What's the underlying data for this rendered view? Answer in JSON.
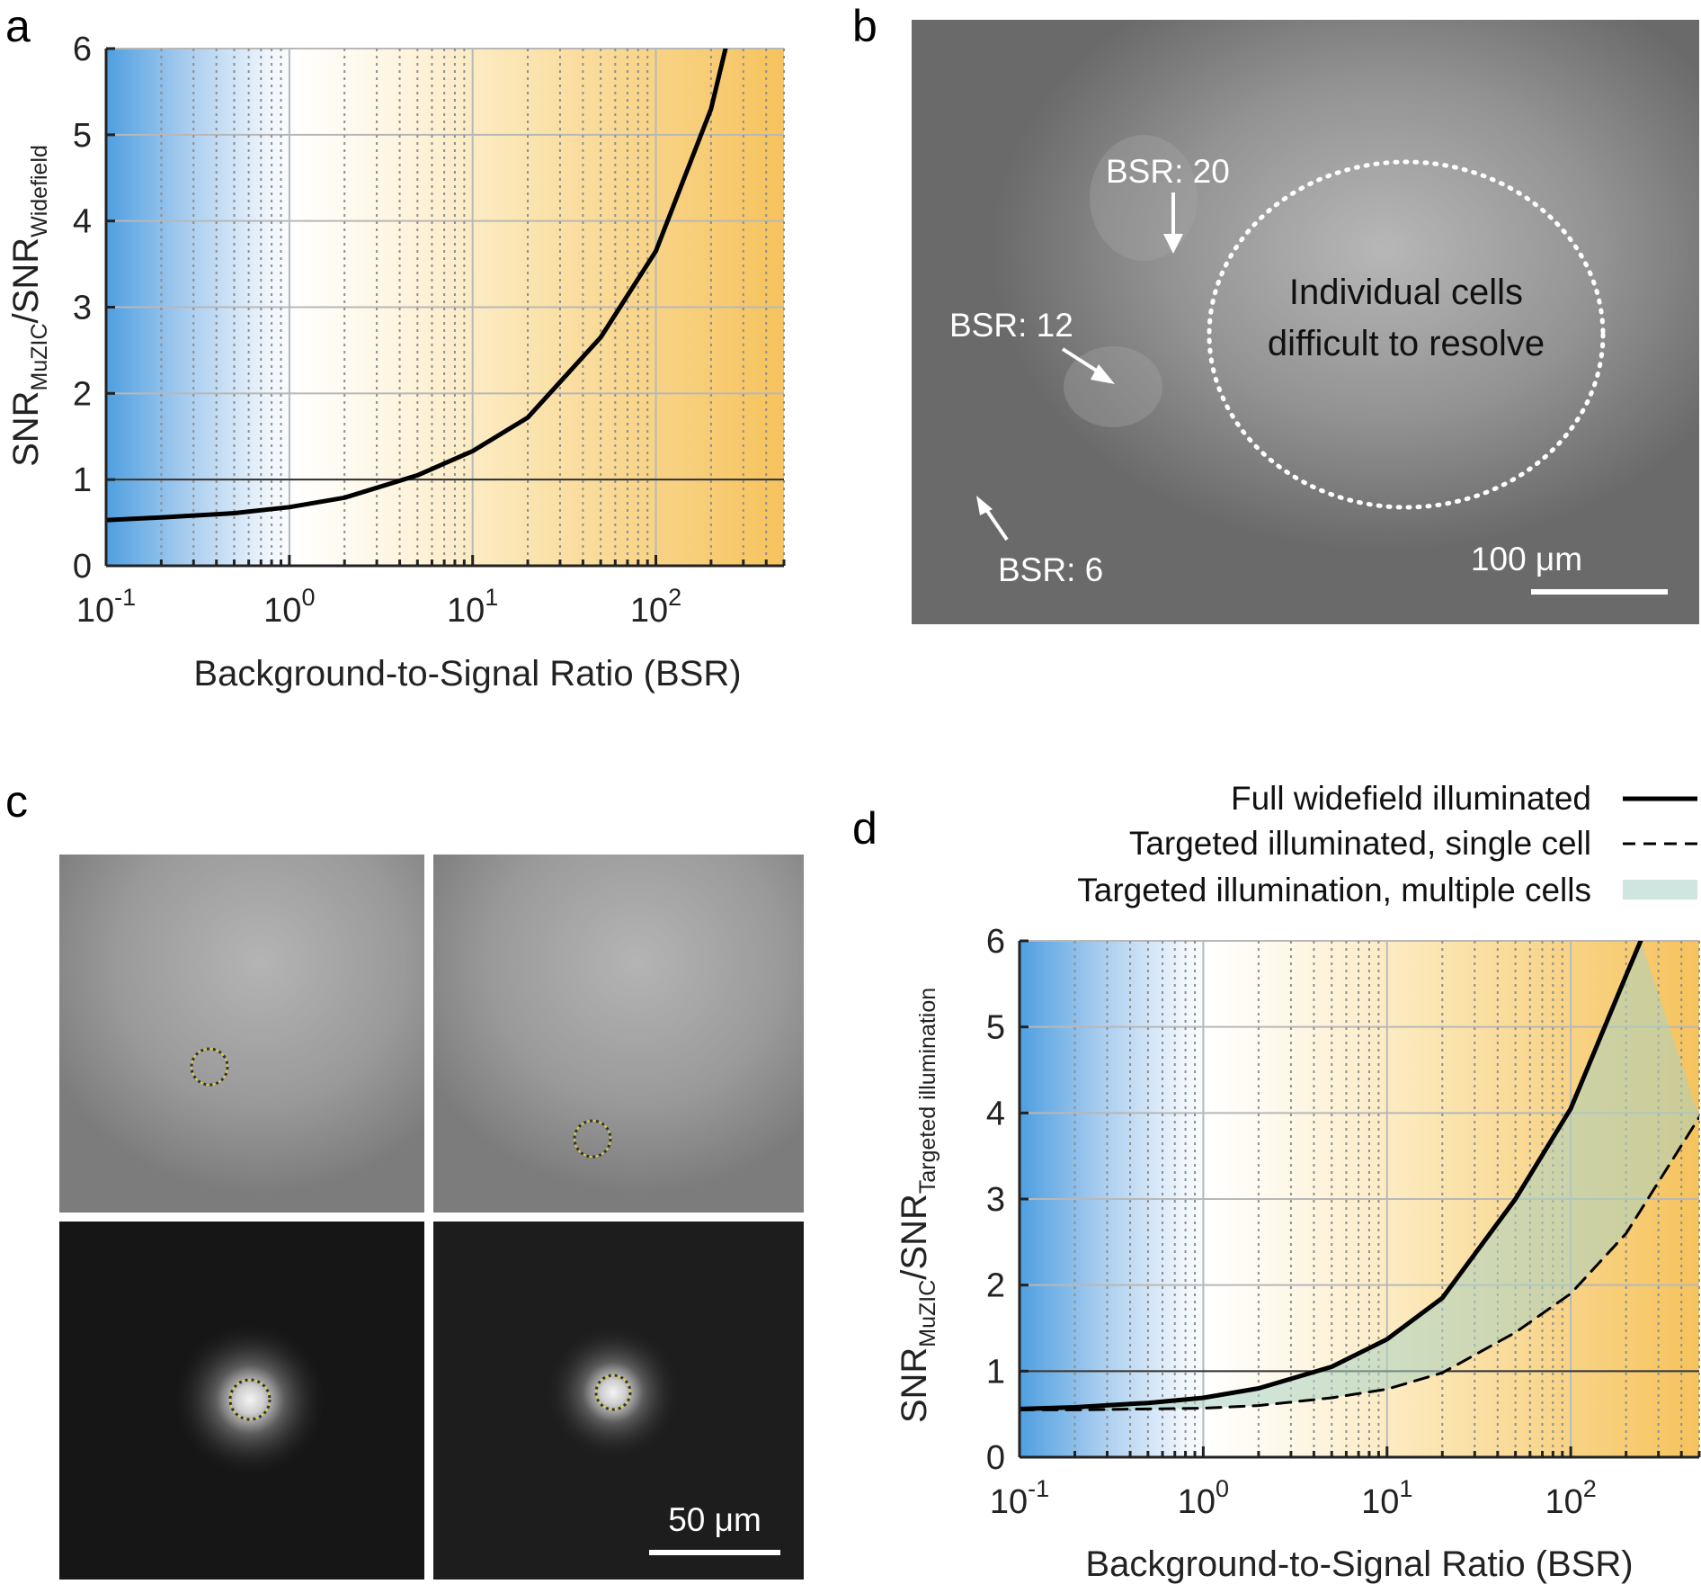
{
  "panels": {
    "a": "a",
    "b": "b",
    "c": "c",
    "d": "d"
  },
  "panel_b": {
    "annotations": [
      "BSR: 20",
      "BSR: 12",
      "BSR: 6"
    ],
    "region_label_line1": "Individual cells",
    "region_label_line2": "difficult to resolve",
    "scale_bar": "100 μm"
  },
  "panel_c": {
    "scale_bar": "50 μm"
  },
  "chart_data": [
    {
      "id": "a",
      "type": "line",
      "x_scale": "log",
      "xlim": [
        0.1,
        500
      ],
      "ylim": [
        0,
        6
      ],
      "x_tick_labels": [
        {
          "base": "10",
          "exp": "-1"
        },
        {
          "base": "10",
          "exp": "0"
        },
        {
          "base": "10",
          "exp": "1"
        },
        {
          "base": "10",
          "exp": "2"
        }
      ],
      "y_ticks": [
        "0",
        "1",
        "2",
        "3",
        "4",
        "5",
        "6"
      ],
      "xlabel": "Background-to-Signal Ratio (BSR)",
      "ylabel": {
        "main": "SNR",
        "sub1": "MuZIC",
        "sep": "/SNR",
        "sub2": "Widefield"
      },
      "grid": true,
      "reference_line_y": 1,
      "background_gradient": [
        "#4f9fe0",
        "#ffffff",
        "#f7c15e"
      ],
      "series": [
        {
          "style": "solid",
          "x": [
            0.1,
            0.2,
            0.5,
            1,
            2,
            5,
            10,
            20,
            50,
            100,
            200,
            240
          ],
          "y": [
            0.53,
            0.56,
            0.61,
            0.68,
            0.79,
            1.05,
            1.33,
            1.72,
            2.65,
            3.65,
            5.3,
            6.0
          ]
        }
      ]
    },
    {
      "id": "d",
      "type": "line",
      "x_scale": "log",
      "xlim": [
        0.1,
        500
      ],
      "ylim": [
        0,
        6
      ],
      "x_tick_labels": [
        {
          "base": "10",
          "exp": "-1"
        },
        {
          "base": "10",
          "exp": "0"
        },
        {
          "base": "10",
          "exp": "1"
        },
        {
          "base": "10",
          "exp": "2"
        }
      ],
      "y_ticks": [
        "0",
        "1",
        "2",
        "3",
        "4",
        "5",
        "6"
      ],
      "xlabel": "Background-to-Signal Ratio (BSR)",
      "ylabel": {
        "main": "SNR",
        "sub1": "MuZIC",
        "sep": "/SNR",
        "sub2": "Targeted illumination"
      },
      "grid": true,
      "reference_line_y": 1,
      "background_gradient": [
        "#4f9fe0",
        "#ffffff",
        "#f7c15e"
      ],
      "legend_position": "top-right",
      "legend": [
        {
          "label": "Full widefield illuminated",
          "style": "solid"
        },
        {
          "label": "Targeted illuminated, single cell",
          "style": "dashed"
        },
        {
          "label": "Targeted illumination, multiple cells",
          "style": "band",
          "color": "#cfe5df"
        }
      ],
      "band_color": "#a9d2c2",
      "series": [
        {
          "style": "solid",
          "x": [
            0.1,
            0.2,
            0.5,
            1,
            2,
            5,
            10,
            20,
            50,
            100,
            200,
            240
          ],
          "y": [
            0.56,
            0.58,
            0.63,
            0.69,
            0.8,
            1.05,
            1.37,
            1.85,
            3.0,
            4.05,
            5.6,
            6.0
          ]
        },
        {
          "style": "dashed",
          "x": [
            0.1,
            0.2,
            0.5,
            1,
            2,
            5,
            10,
            20,
            50,
            100,
            200,
            500
          ],
          "y": [
            0.55,
            0.55,
            0.56,
            0.57,
            0.6,
            0.69,
            0.79,
            0.98,
            1.45,
            1.9,
            2.6,
            3.95
          ]
        }
      ]
    }
  ],
  "colors": {
    "curve": "#000000",
    "grid_solid": "#b8b8b8",
    "grid_dotted": "#8f8f8f"
  }
}
